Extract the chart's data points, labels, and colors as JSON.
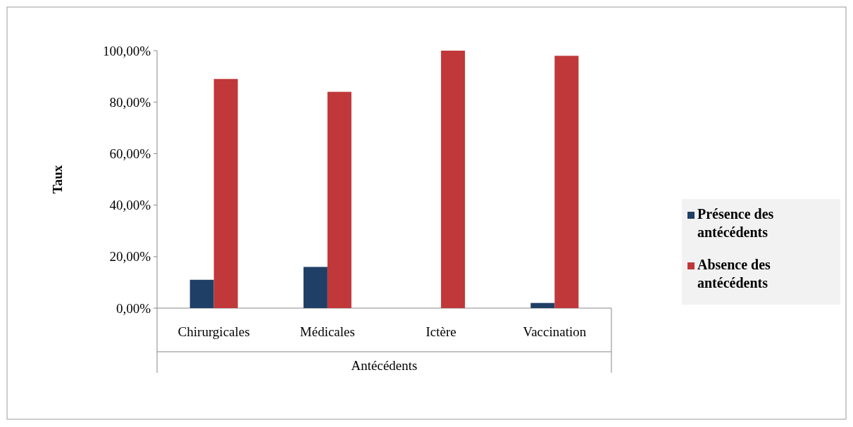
{
  "chart_data": {
    "type": "bar",
    "categories": [
      "Chirurgicales",
      "Médicales",
      "Ictère",
      "Vaccination"
    ],
    "series": [
      {
        "name": "Présence des antécédents",
        "color": "#1f3f66",
        "values": [
          11,
          16,
          0,
          2
        ]
      },
      {
        "name": "Absence des antécédents",
        "color": "#c0383a",
        "values": [
          89,
          84,
          100,
          98
        ]
      }
    ],
    "xlabel": "Antécédents",
    "ylabel": "Taux",
    "ylim": [
      0,
      100
    ],
    "yticks": [
      {
        "value": 0,
        "label": "0,00%"
      },
      {
        "value": 20,
        "label": "20,00%"
      },
      {
        "value": 40,
        "label": "40,00%"
      },
      {
        "value": 60,
        "label": "60,00%"
      },
      {
        "value": 80,
        "label": "80,00%"
      },
      {
        "value": 100,
        "label": "100,00%"
      }
    ],
    "grid": false,
    "legend": "right"
  }
}
